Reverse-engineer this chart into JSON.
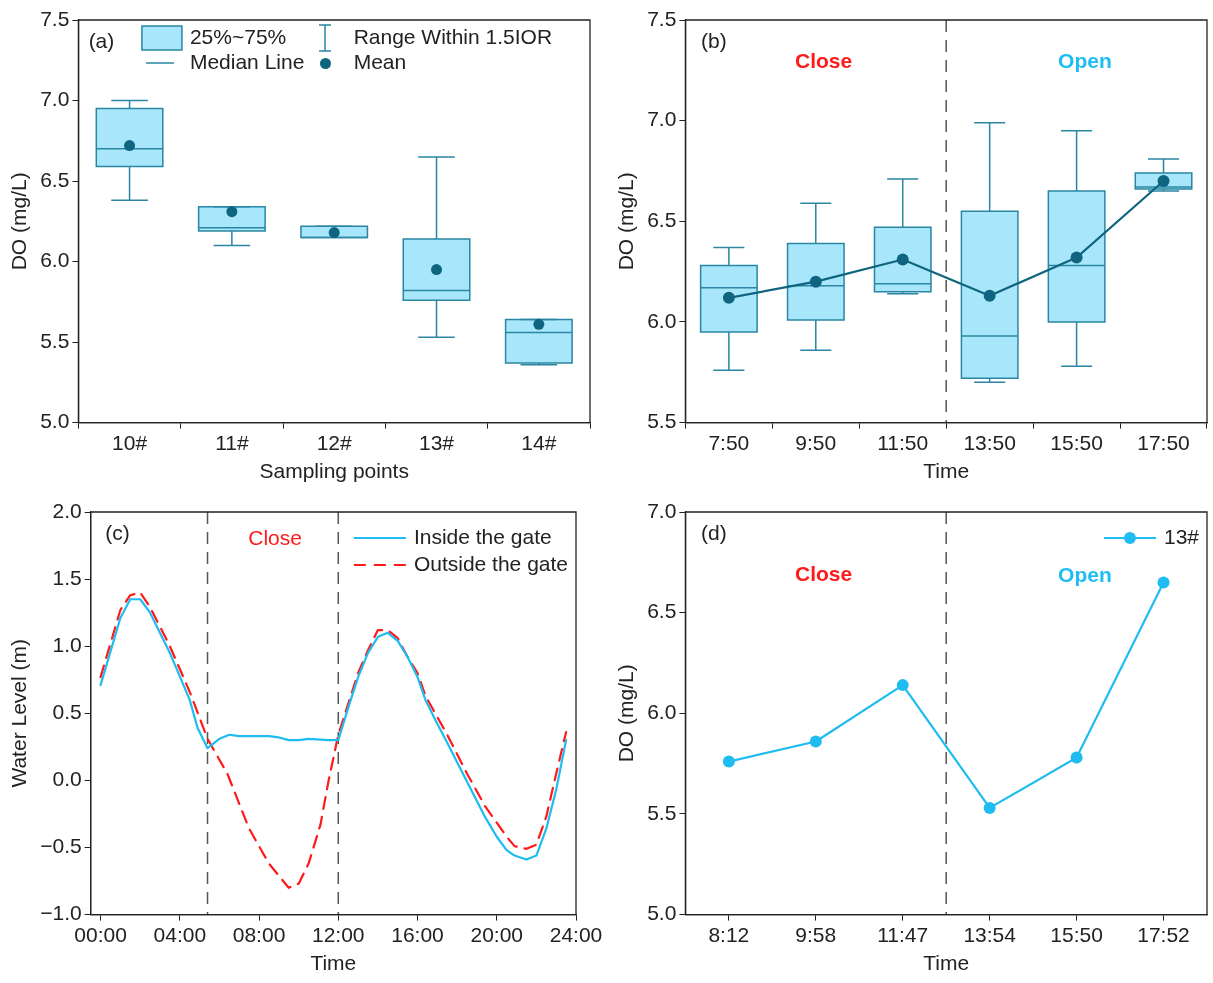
{
  "chart_data": [
    {
      "type": "box",
      "xlabel": "Sampling points",
      "ylabel": "DO (mg/L)",
      "categories": [
        "10#",
        "11#",
        "12#",
        "13#",
        "14#"
      ],
      "series": [
        {
          "name": "25%~75%",
          "color": "#a8e6fb",
          "boxes": [
            {
              "low": 6.38,
              "q1": 6.59,
              "median": 6.7,
              "q3": 6.95,
              "high": 7.0,
              "mean": 6.72
            },
            {
              "low": 6.1,
              "q1": 6.19,
              "median": 6.21,
              "q3": 6.34,
              "high": 6.34,
              "mean": 6.31
            },
            {
              "low": 6.15,
              "q1": 6.15,
              "median": 6.15,
              "q3": 6.22,
              "high": 6.22,
              "mean": 6.18
            },
            {
              "low": 5.53,
              "q1": 5.76,
              "median": 5.82,
              "q3": 6.14,
              "high": 6.65,
              "mean": 5.95
            },
            {
              "low": 5.36,
              "q1": 5.37,
              "median": 5.56,
              "q3": 5.64,
              "high": 5.64,
              "mean": 5.61
            }
          ]
        }
      ],
      "ylim": [
        5,
        7.5
      ],
      "yticks": [
        {
          "value": 5,
          "label": "5.0"
        },
        {
          "value": 5.5,
          "label": "5.5"
        },
        {
          "value": 6,
          "label": "6.0"
        },
        {
          "value": 6.5,
          "label": "6.5"
        },
        {
          "value": 7,
          "label": "7.0"
        },
        {
          "value": 7.5,
          "label": "7.5"
        }
      ],
      "legend": "top",
      "annotations": [
        "(a)",
        "Range Within 1.5IOR",
        "Median Line",
        "Mean"
      ]
    },
    {
      "type": "box",
      "xlabel": "Time",
      "ylabel": "DO (mg/L)",
      "categories": [
        "7:50",
        "9:50",
        "11:50",
        "13:50",
        "15:50",
        "17:50"
      ],
      "series": [
        {
          "color": "#a8e6fb",
          "boxes": [
            {
              "low": 5.76,
              "q1": 5.95,
              "median": 6.17,
              "q3": 6.28,
              "high": 6.37
            },
            {
              "low": 5.86,
              "q1": 6.01,
              "median": 6.18,
              "q3": 6.39,
              "high": 6.59
            },
            {
              "low": 6.14,
              "q1": 6.15,
              "median": 6.19,
              "q3": 6.47,
              "high": 6.71
            },
            {
              "low": 5.7,
              "q1": 5.72,
              "median": 5.93,
              "q3": 6.55,
              "high": 6.99
            },
            {
              "low": 5.78,
              "q1": 6.0,
              "median": 6.28,
              "q3": 6.65,
              "high": 6.95
            },
            {
              "low": 6.65,
              "q1": 6.66,
              "median": 6.67,
              "q3": 6.74,
              "high": 6.81
            }
          ]
        },
        {
          "type": "line",
          "color": "#0f657f",
          "values": [
            6.12,
            6.2,
            6.31,
            6.13,
            6.32,
            6.7
          ]
        }
      ],
      "marker": "circle",
      "ylim": [
        5.5,
        7.5
      ],
      "yticks": [
        {
          "value": 5.5,
          "label": "5.5"
        },
        {
          "value": 6,
          "label": "6.0"
        },
        {
          "value": 6.5,
          "label": "6.5"
        },
        {
          "value": 7,
          "label": "7.0"
        },
        {
          "value": 7.5,
          "label": "7.5"
        }
      ],
      "annotations": [
        "(b)",
        "Close",
        "Open"
      ]
    },
    {
      "type": "line",
      "xlabel": "Time",
      "ylabel": "Water Level (m)",
      "series": [
        {
          "name": "Inside the gate",
          "color": "#1ebcf0",
          "line_style": "solid",
          "x": [
            0,
            1,
            1.5,
            2,
            2.5,
            3.5,
            4.5,
            4.9,
            5.4,
            6,
            6.5,
            7,
            8.5,
            9,
            9.5,
            10,
            10.5,
            11.5,
            12,
            12.5,
            13,
            13.5,
            14,
            14.5,
            15,
            15.5,
            16,
            16.4,
            16.9,
            17.5,
            18.5,
            19.4,
            20,
            20.5,
            20.9,
            21.5,
            22,
            22.5,
            23,
            23.5
          ],
          "values": [
            0.71,
            1.21,
            1.35,
            1.35,
            1.25,
            0.95,
            0.6,
            0.39,
            0.24,
            0.31,
            0.34,
            0.33,
            0.33,
            0.32,
            0.3,
            0.3,
            0.31,
            0.3,
            0.3,
            0.54,
            0.77,
            0.95,
            1.07,
            1.1,
            1.04,
            0.92,
            0.77,
            0.6,
            0.45,
            0.28,
            -0.01,
            -0.27,
            -0.42,
            -0.52,
            -0.56,
            -0.59,
            -0.56,
            -0.36,
            -0.07,
            0.3
          ]
        },
        {
          "name": "Outside the gate",
          "color": "#ff1a1a",
          "line_style": "dashed",
          "x": [
            0,
            1,
            1.5,
            2,
            2.5,
            3.5,
            4.5,
            5.4,
            6.4,
            7.5,
            8.5,
            9.5,
            10,
            10.5,
            11.1,
            11.5,
            12,
            12.5,
            13,
            13.5,
            14,
            14.5,
            15,
            15.5,
            16,
            16.4,
            17.5,
            18.5,
            19.4,
            20.5,
            20.9,
            21.5,
            22,
            22.5,
            23,
            23.5
          ],
          "values": [
            0.77,
            1.27,
            1.38,
            1.4,
            1.29,
            1.0,
            0.66,
            0.31,
            0.05,
            -0.36,
            -0.62,
            -0.8,
            -0.77,
            -0.62,
            -0.33,
            -0.01,
            0.34,
            0.57,
            0.8,
            0.97,
            1.12,
            1.12,
            1.06,
            0.92,
            0.8,
            0.63,
            0.34,
            0.05,
            -0.19,
            -0.42,
            -0.49,
            -0.51,
            -0.48,
            -0.27,
            0.05,
            0.36
          ]
        }
      ],
      "xlim": [
        -0.5,
        24
      ],
      "xticks": [
        {
          "value": 0,
          "label": "00:00"
        },
        {
          "value": 4,
          "label": "04:00"
        },
        {
          "value": 8,
          "label": "08:00"
        },
        {
          "value": 12,
          "label": "12:00"
        },
        {
          "value": 16,
          "label": "16:00"
        },
        {
          "value": 20,
          "label": "20:00"
        },
        {
          "value": 24,
          "label": "24:00"
        }
      ],
      "ylim": [
        -1,
        2
      ],
      "yticks": [
        {
          "value": -1,
          "label": "−1.0"
        },
        {
          "value": -0.5,
          "label": "−0.5"
        },
        {
          "value": 0,
          "label": "0.0"
        },
        {
          "value": 0.5,
          "label": "0.5"
        },
        {
          "value": 1,
          "label": "1.0"
        },
        {
          "value": 1.5,
          "label": "1.5"
        },
        {
          "value": 2,
          "label": "2.0"
        }
      ],
      "ref_lines": [
        {
          "axis": "x",
          "value": 5.4,
          "color": "#555555",
          "line_style": "dashed"
        },
        {
          "axis": "x",
          "value": 12,
          "color": "#555555",
          "line_style": "dashed"
        }
      ],
      "legend": "top right",
      "annotations": [
        "(c)",
        "Close"
      ]
    },
    {
      "type": "line",
      "xlabel": "Time",
      "ylabel": "DO (mg/L)",
      "categories": [
        "8:12",
        "9:58",
        "11:47",
        "13:54",
        "15:50",
        "17:52"
      ],
      "series": [
        {
          "name": "13#",
          "color": "#1ebcf0",
          "values": [
            5.76,
            5.86,
            6.14,
            5.53,
            5.78,
            6.65
          ]
        }
      ],
      "marker": "circle",
      "ylim": [
        5,
        7
      ],
      "yticks": [
        {
          "value": 5,
          "label": "5.0"
        },
        {
          "value": 5.5,
          "label": "5.5"
        },
        {
          "value": 6,
          "label": "6.0"
        },
        {
          "value": 6.5,
          "label": "6.5"
        },
        {
          "value": 7,
          "label": "7.0"
        }
      ],
      "legend": "top right",
      "annotations": [
        "(d)",
        "Close",
        "Open"
      ]
    }
  ]
}
